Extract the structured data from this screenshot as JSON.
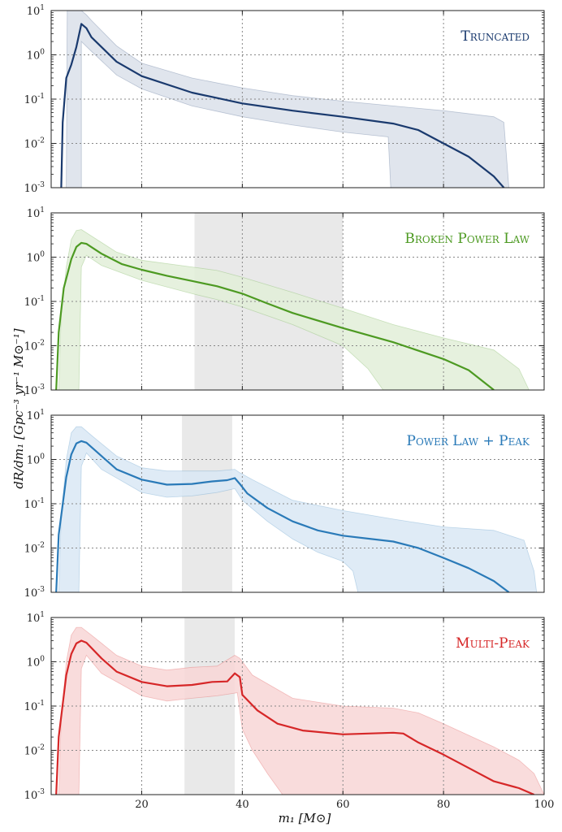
{
  "chart_data": {
    "type": "area",
    "y_scale": "log",
    "xlim": [
      2,
      100
    ],
    "ylim": [
      0.001,
      10
    ],
    "grid": true,
    "xlabel": "m₁ [M⊙]",
    "ylabel": "dR/dm₁ [Gpc⁻³ yr⁻¹ M⊙⁻¹]",
    "x_ticks": [
      "20",
      "40",
      "60",
      "80",
      "100"
    ],
    "y_ticks": [
      {
        "base": "10",
        "exp": "-3",
        "value": 0.001
      },
      {
        "base": "10",
        "exp": "-2",
        "value": 0.01
      },
      {
        "base": "10",
        "exp": "-1",
        "value": 0.1
      },
      {
        "base": "10",
        "exp": "0",
        "value": 1
      },
      {
        "base": "10",
        "exp": "1",
        "value": 10
      }
    ],
    "panels": [
      {
        "title": "Truncated",
        "color": "#1a3a6e",
        "fill": "#dbe1ea",
        "shaded_region": null,
        "median": [
          [
            4,
            0.001
          ],
          [
            4.3,
            0.03
          ],
          [
            5,
            0.3
          ],
          [
            6,
            0.6
          ],
          [
            7,
            1.5
          ],
          [
            8,
            5
          ],
          [
            9,
            4
          ],
          [
            10,
            2.5
          ],
          [
            15,
            0.7
          ],
          [
            20,
            0.33
          ],
          [
            30,
            0.14
          ],
          [
            40,
            0.08
          ],
          [
            50,
            0.055
          ],
          [
            60,
            0.04
          ],
          [
            70,
            0.028
          ],
          [
            75,
            0.02
          ],
          [
            80,
            0.01
          ],
          [
            85,
            0.005
          ],
          [
            90,
            0.0018
          ],
          [
            92,
            0.001
          ]
        ],
        "upper": [
          [
            5,
            0.001
          ],
          [
            5.2,
            10
          ],
          [
            8,
            10
          ],
          [
            9,
            8
          ],
          [
            10,
            6
          ],
          [
            15,
            1.6
          ],
          [
            20,
            0.65
          ],
          [
            30,
            0.3
          ],
          [
            40,
            0.18
          ],
          [
            50,
            0.12
          ],
          [
            60,
            0.09
          ],
          [
            70,
            0.07
          ],
          [
            80,
            0.055
          ],
          [
            90,
            0.04
          ],
          [
            92,
            0.03
          ],
          [
            93,
            0.001
          ]
        ],
        "lower": [
          [
            8,
            0.001
          ],
          [
            8,
            2
          ],
          [
            10,
            1.2
          ],
          [
            15,
            0.35
          ],
          [
            20,
            0.17
          ],
          [
            30,
            0.07
          ],
          [
            40,
            0.04
          ],
          [
            50,
            0.026
          ],
          [
            60,
            0.018
          ],
          [
            69,
            0.014
          ],
          [
            69.5,
            0.001
          ]
        ]
      },
      {
        "title": "Broken Power Law",
        "color": "#4d9a22",
        "fill": "#e2efd8",
        "shaded_region": [
          30.5,
          60
        ],
        "median": [
          [
            3,
            0.001
          ],
          [
            3.5,
            0.02
          ],
          [
            4.5,
            0.2
          ],
          [
            6,
            0.9
          ],
          [
            7,
            1.7
          ],
          [
            8,
            2.1
          ],
          [
            9,
            2
          ],
          [
            12,
            1.2
          ],
          [
            16,
            0.7
          ],
          [
            20,
            0.52
          ],
          [
            25,
            0.38
          ],
          [
            30,
            0.29
          ],
          [
            35,
            0.22
          ],
          [
            40,
            0.15
          ],
          [
            45,
            0.09
          ],
          [
            50,
            0.055
          ],
          [
            60,
            0.025
          ],
          [
            70,
            0.012
          ],
          [
            80,
            0.005
          ],
          [
            85,
            0.0028
          ],
          [
            90,
            0.001
          ]
        ],
        "upper": [
          [
            3.5,
            0.001
          ],
          [
            4,
            0.05
          ],
          [
            5,
            0.6
          ],
          [
            6,
            2.5
          ],
          [
            7,
            4
          ],
          [
            8,
            4.2
          ],
          [
            10,
            3
          ],
          [
            15,
            1.3
          ],
          [
            20,
            0.85
          ],
          [
            30,
            0.6
          ],
          [
            35,
            0.5
          ],
          [
            40,
            0.35
          ],
          [
            50,
            0.16
          ],
          [
            60,
            0.07
          ],
          [
            70,
            0.03
          ],
          [
            80,
            0.015
          ],
          [
            90,
            0.008
          ],
          [
            95,
            0.003
          ],
          [
            97,
            0.001
          ]
        ],
        "lower": [
          [
            7.5,
            0.001
          ],
          [
            8,
            0.6
          ],
          [
            9,
            1.1
          ],
          [
            12,
            0.65
          ],
          [
            20,
            0.3
          ],
          [
            30,
            0.15
          ],
          [
            35,
            0.11
          ],
          [
            40,
            0.075
          ],
          [
            50,
            0.03
          ],
          [
            60,
            0.01
          ],
          [
            65,
            0.003
          ],
          [
            68,
            0.001
          ]
        ]
      },
      {
        "title": "Power Law + Peak",
        "color": "#2a7ab8",
        "fill": "#d9e8f4",
        "shaded_region": [
          28,
          38
        ],
        "median": [
          [
            3,
            0.001
          ],
          [
            3.5,
            0.02
          ],
          [
            5,
            0.4
          ],
          [
            6,
            1.3
          ],
          [
            7,
            2.3
          ],
          [
            8,
            2.6
          ],
          [
            9,
            2.4
          ],
          [
            12,
            1.2
          ],
          [
            15,
            0.6
          ],
          [
            20,
            0.35
          ],
          [
            25,
            0.27
          ],
          [
            30,
            0.28
          ],
          [
            34,
            0.32
          ],
          [
            37,
            0.34
          ],
          [
            38.5,
            0.38
          ],
          [
            39.5,
            0.28
          ],
          [
            41,
            0.17
          ],
          [
            45,
            0.08
          ],
          [
            50,
            0.04
          ],
          [
            55,
            0.025
          ],
          [
            60,
            0.019
          ],
          [
            70,
            0.014
          ],
          [
            75,
            0.01
          ],
          [
            80,
            0.006
          ],
          [
            85,
            0.0035
          ],
          [
            90,
            0.0018
          ],
          [
            93,
            0.001
          ]
        ],
        "upper": [
          [
            3.5,
            0.001
          ],
          [
            4,
            0.05
          ],
          [
            5,
            1
          ],
          [
            6,
            4
          ],
          [
            7,
            5.5
          ],
          [
            8,
            5.5
          ],
          [
            10,
            3.5
          ],
          [
            15,
            1.2
          ],
          [
            20,
            0.65
          ],
          [
            25,
            0.55
          ],
          [
            30,
            0.55
          ],
          [
            35,
            0.55
          ],
          [
            38.5,
            0.6
          ],
          [
            39.5,
            0.5
          ],
          [
            42,
            0.35
          ],
          [
            50,
            0.12
          ],
          [
            60,
            0.07
          ],
          [
            70,
            0.045
          ],
          [
            80,
            0.03
          ],
          [
            90,
            0.025
          ],
          [
            96,
            0.015
          ],
          [
            98,
            0.003
          ],
          [
            98.5,
            0.001
          ]
        ],
        "lower": [
          [
            7.5,
            0.001
          ],
          [
            8,
            0.7
          ],
          [
            9,
            1.4
          ],
          [
            12,
            0.6
          ],
          [
            20,
            0.18
          ],
          [
            25,
            0.14
          ],
          [
            30,
            0.15
          ],
          [
            35,
            0.18
          ],
          [
            38.5,
            0.22
          ],
          [
            40,
            0.12
          ],
          [
            45,
            0.04
          ],
          [
            50,
            0.016
          ],
          [
            55,
            0.008
          ],
          [
            60,
            0.005
          ],
          [
            62,
            0.003
          ],
          [
            63,
            0.001
          ]
        ]
      },
      {
        "title": "Multi-Peak",
        "color": "#d62728",
        "fill": "#f8d6d6",
        "shaded_region": [
          28.5,
          38.5
        ],
        "median": [
          [
            3,
            0.001
          ],
          [
            3.5,
            0.02
          ],
          [
            5,
            0.5
          ],
          [
            6,
            1.5
          ],
          [
            7,
            2.6
          ],
          [
            8,
            3
          ],
          [
            9,
            2.7
          ],
          [
            12,
            1.2
          ],
          [
            15,
            0.6
          ],
          [
            20,
            0.35
          ],
          [
            25,
            0.28
          ],
          [
            30,
            0.3
          ],
          [
            34,
            0.35
          ],
          [
            37,
            0.36
          ],
          [
            38.5,
            0.55
          ],
          [
            39.5,
            0.45
          ],
          [
            40,
            0.18
          ],
          [
            43,
            0.08
          ],
          [
            47,
            0.04
          ],
          [
            52,
            0.028
          ],
          [
            60,
            0.023
          ],
          [
            65,
            0.024
          ],
          [
            70,
            0.025
          ],
          [
            72,
            0.024
          ],
          [
            75,
            0.015
          ],
          [
            80,
            0.008
          ],
          [
            85,
            0.004
          ],
          [
            90,
            0.002
          ],
          [
            95,
            0.0014
          ],
          [
            98,
            0.001
          ]
        ],
        "upper": [
          [
            3.5,
            0.001
          ],
          [
            4,
            0.05
          ],
          [
            5,
            1
          ],
          [
            6,
            4
          ],
          [
            7,
            6
          ],
          [
            8,
            6
          ],
          [
            10,
            4
          ],
          [
            15,
            1.4
          ],
          [
            20,
            0.8
          ],
          [
            25,
            0.65
          ],
          [
            30,
            0.75
          ],
          [
            35,
            0.8
          ],
          [
            38.5,
            1.4
          ],
          [
            39.5,
            1.2
          ],
          [
            42,
            0.5
          ],
          [
            50,
            0.15
          ],
          [
            60,
            0.1
          ],
          [
            70,
            0.09
          ],
          [
            75,
            0.07
          ],
          [
            80,
            0.04
          ],
          [
            90,
            0.012
          ],
          [
            95,
            0.006
          ],
          [
            98,
            0.003
          ],
          [
            100,
            0.001
          ]
        ],
        "lower": [
          [
            7.5,
            0.001
          ],
          [
            8,
            0.7
          ],
          [
            9,
            1.4
          ],
          [
            12,
            0.55
          ],
          [
            20,
            0.17
          ],
          [
            25,
            0.13
          ],
          [
            30,
            0.15
          ],
          [
            35,
            0.17
          ],
          [
            39,
            0.2
          ],
          [
            40,
            0.03
          ],
          [
            42,
            0.01
          ],
          [
            45,
            0.003
          ],
          [
            48,
            0.001
          ]
        ]
      }
    ]
  }
}
